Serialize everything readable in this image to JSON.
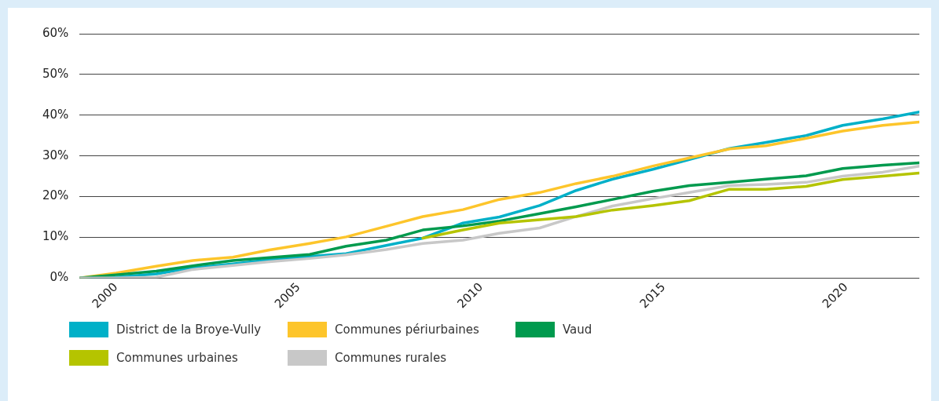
{
  "chart_data": {
    "type": "line",
    "x": [
      1999,
      2000,
      2001.1,
      2002.1,
      2003.2,
      2004.2,
      2005.3,
      2006.3,
      2007.4,
      2008.4,
      2009.5,
      2010.5,
      2011.6,
      2012.6,
      2013.6,
      2014.7,
      2015.7,
      2016.8,
      2017.8,
      2018.9,
      2019.9,
      2021,
      2022
    ],
    "xlim": [
      1999,
      2022
    ],
    "xticks": [
      2000,
      2005,
      2010,
      2015,
      2020
    ],
    "ylim": [
      0,
      60
    ],
    "yticks": [
      {
        "value": 0,
        "label": "0%"
      },
      {
        "value": 10,
        "label": "10%"
      },
      {
        "value": 20,
        "label": "20%"
      },
      {
        "value": 30,
        "label": "30%"
      },
      {
        "value": 40,
        "label": "40%"
      },
      {
        "value": 50,
        "label": "50%"
      },
      {
        "value": 60,
        "label": "60%"
      }
    ],
    "grid": "y",
    "legend": "bottom",
    "marker": "none",
    "line_style": "solid",
    "series": [
      {
        "name": "Communes urbaines",
        "color": "#b5c400",
        "values": [
          null,
          null,
          null,
          null,
          null,
          null,
          null,
          null,
          null,
          9.8,
          11.8,
          13.5,
          14.3,
          15.1,
          16.7,
          17.8,
          19,
          21.8,
          21.8,
          22.5,
          24.2,
          25,
          25.8
        ]
      },
      {
        "name": "Communes rurales",
        "color": "#c8c8c8",
        "values": [
          0,
          0,
          0.2,
          2.1,
          3.1,
          4,
          4.8,
          5.7,
          7,
          8.5,
          9.3,
          11,
          12.3,
          15.1,
          17.7,
          19.5,
          21,
          22.7,
          23,
          23.5,
          25,
          26,
          27.5
        ]
      },
      {
        "name": "Vaud",
        "color": "#009a4e",
        "values": [
          0,
          0.8,
          1.7,
          3,
          4.3,
          5,
          5.8,
          7.8,
          9.3,
          11.8,
          12.8,
          14,
          15.8,
          17.5,
          19.3,
          21.3,
          22.7,
          23.5,
          24.3,
          25.1,
          26.9,
          27.7,
          28.3
        ]
      },
      {
        "name": "Communes périurbaines",
        "color": "#fdc52b",
        "values": [
          0,
          1.2,
          2.9,
          4.3,
          5.1,
          6.9,
          8.5,
          10.1,
          12.7,
          15.1,
          16.8,
          19.3,
          21,
          23.2,
          25,
          27.5,
          29.5,
          31.7,
          32.5,
          34.3,
          36.1,
          37.5,
          38.3
        ]
      },
      {
        "name": "District de la Broye-Vully",
        "color": "#00b0c8",
        "values": [
          0,
          0.2,
          1,
          2.5,
          3.5,
          4.5,
          5.3,
          6,
          8,
          9.8,
          13.5,
          15,
          17.8,
          21.5,
          24.3,
          26.7,
          29.1,
          31.8,
          33.3,
          35,
          37.5,
          39.1,
          40.8
        ]
      }
    ]
  }
}
